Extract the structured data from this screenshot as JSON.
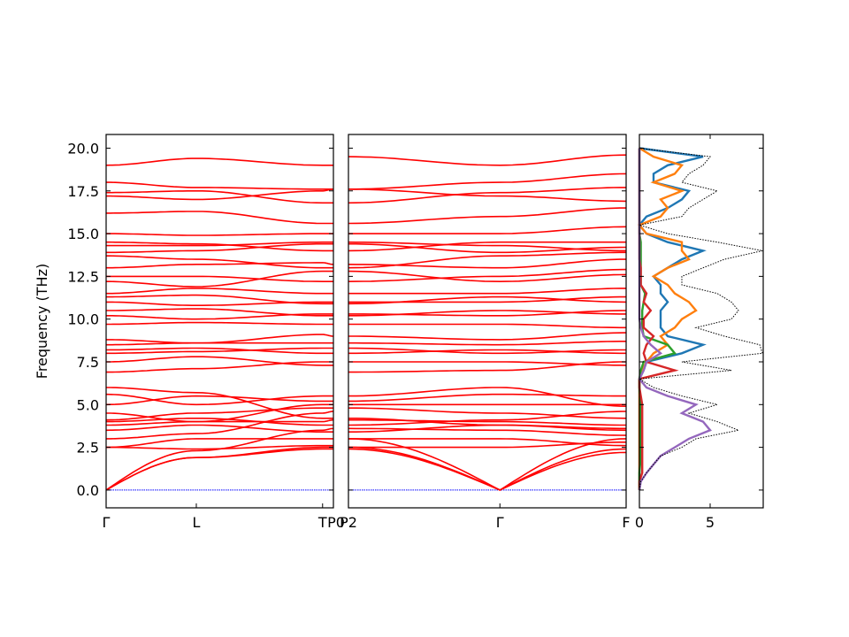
{
  "chart_data": {
    "type": "line",
    "title": "",
    "ylabel": "Frequency (THz)",
    "ylim": [
      -1.04,
      20.8
    ],
    "yticks": [
      0,
      2.5,
      5,
      7.5,
      10,
      12.5,
      15,
      17.5,
      20
    ],
    "ytick_labels": [
      "0.0",
      "2.5",
      "5.0",
      "7.5",
      "10.0",
      "12.5",
      "15.0",
      "17.5",
      "20.0"
    ],
    "band_panels": [
      {
        "name": "path-1",
        "kpoints": [
          0,
          1.0,
          2.4,
          2.52
        ],
        "labels": [
          "Γ",
          "L",
          "T",
          ""
        ],
        "label_after": "P0",
        "band_color": "#ff0000",
        "bands": [
          [
            0,
            1.9,
            2.4,
            2.4
          ],
          [
            0,
            1.9,
            2.5,
            2.5
          ],
          [
            0,
            2.3,
            3.5,
            3.6
          ],
          [
            2.5,
            2.4,
            2.6,
            2.6
          ],
          [
            2.5,
            3.0,
            3.0,
            3.0
          ],
          [
            3.0,
            3.3,
            4.5,
            4.6
          ],
          [
            3.5,
            3.8,
            3.4,
            3.4
          ],
          [
            3.8,
            4.0,
            4.0,
            4.1
          ],
          [
            4.0,
            4.2,
            3.8,
            3.8
          ],
          [
            4.1,
            4.5,
            4.8,
            4.8
          ],
          [
            4.5,
            4.0,
            5.0,
            5.0
          ],
          [
            5.0,
            5.5,
            5.2,
            5.2
          ],
          [
            5.6,
            5.0,
            5.5,
            5.5
          ],
          [
            6.0,
            5.7,
            4.2,
            4.2
          ],
          [
            6.9,
            7.1,
            7.5,
            7.5
          ],
          [
            7.5,
            7.8,
            7.3,
            7.3
          ],
          [
            8.0,
            8.1,
            8.3,
            8.3
          ],
          [
            8.2,
            8.3,
            8.0,
            8.0
          ],
          [
            8.5,
            8.6,
            8.6,
            8.6
          ],
          [
            8.8,
            8.6,
            9.1,
            9.0
          ],
          [
            9.7,
            9.8,
            9.7,
            9.7
          ],
          [
            10.2,
            10.0,
            10.3,
            10.3
          ],
          [
            10.5,
            10.6,
            10.2,
            10.2
          ],
          [
            11.0,
            10.8,
            11.0,
            11.0
          ],
          [
            11.3,
            11.4,
            10.9,
            10.9
          ],
          [
            11.5,
            11.8,
            11.5,
            11.5
          ],
          [
            12.2,
            11.9,
            12.8,
            12.8
          ],
          [
            12.5,
            12.5,
            12.2,
            12.2
          ],
          [
            13.0,
            13.2,
            13.3,
            13.2
          ],
          [
            13.7,
            13.5,
            13.0,
            13.0
          ],
          [
            13.9,
            14.0,
            14.4,
            14.4
          ],
          [
            14.3,
            14.3,
            14.5,
            14.5
          ],
          [
            14.5,
            14.4,
            14.0,
            14.0
          ],
          [
            15.0,
            14.9,
            15.0,
            15.0
          ],
          [
            16.2,
            16.3,
            15.6,
            15.6
          ],
          [
            17.2,
            17.0,
            17.5,
            17.6
          ],
          [
            17.4,
            17.5,
            16.8,
            16.8
          ],
          [
            18.0,
            17.7,
            17.6,
            17.6
          ],
          [
            19.0,
            19.4,
            19.0,
            19.0
          ]
        ]
      },
      {
        "name": "path-2",
        "kpoints": [
          0,
          1.68,
          3.08
        ],
        "labels": [
          "P2",
          "Γ",
          "F"
        ],
        "band_color": "#ff0000",
        "bands": [
          [
            2.4,
            0,
            2.2
          ],
          [
            2.5,
            0,
            2.4
          ],
          [
            3.0,
            0,
            3.0
          ],
          [
            2.5,
            2.5,
            2.8
          ],
          [
            3.0,
            3.0,
            2.6
          ],
          [
            3.6,
            3.5,
            3.2
          ],
          [
            3.4,
            3.8,
            3.5
          ],
          [
            4.1,
            4.0,
            3.8
          ],
          [
            3.8,
            4.1,
            4.6
          ],
          [
            4.8,
            4.5,
            4.2
          ],
          [
            5.0,
            5.0,
            5.0
          ],
          [
            5.2,
            5.6,
            5.5
          ],
          [
            5.5,
            6.0,
            4.9
          ],
          [
            4.2,
            3.8,
            3.6
          ],
          [
            6.9,
            7.0,
            7.5
          ],
          [
            7.5,
            7.5,
            7.3
          ],
          [
            8.3,
            8.0,
            8.2
          ],
          [
            8.0,
            8.2,
            8.0
          ],
          [
            8.6,
            8.5,
            8.7
          ],
          [
            9.0,
            8.8,
            9.2
          ],
          [
            9.7,
            9.7,
            9.5
          ],
          [
            10.3,
            10.2,
            10.5
          ],
          [
            10.2,
            10.5,
            10.3
          ],
          [
            11.0,
            11.0,
            11.3
          ],
          [
            10.9,
            11.3,
            11.0
          ],
          [
            11.5,
            11.5,
            11.8
          ],
          [
            12.8,
            12.2,
            12.6
          ],
          [
            12.2,
            12.5,
            12.9
          ],
          [
            13.2,
            13.0,
            13.5
          ],
          [
            13.0,
            13.7,
            13.9
          ],
          [
            14.4,
            13.9,
            14.2
          ],
          [
            14.5,
            14.3,
            14.0
          ],
          [
            14.0,
            14.5,
            14.5
          ],
          [
            15.0,
            15.0,
            15.4
          ],
          [
            15.6,
            16.0,
            16.5
          ],
          [
            17.6,
            17.2,
            16.9
          ],
          [
            16.8,
            17.4,
            17.7
          ],
          [
            17.6,
            18.0,
            18.5
          ],
          [
            19.5,
            19.0,
            19.6
          ]
        ]
      }
    ],
    "zero_line_color": "#0000ff",
    "dos": {
      "xlim": [
        0,
        8.75
      ],
      "xticks": [
        0,
        5
      ],
      "xtick_labels": [
        "0",
        "5"
      ],
      "freq_start": 0,
      "freq_step": 0.5,
      "total": {
        "color": "#000000",
        "style": "dotted",
        "values": [
          0,
          0.1,
          0.5,
          1.0,
          1.5,
          3.0,
          4.0,
          7.0,
          5.5,
          3.5,
          5.5,
          3.0,
          1.0,
          0,
          6.5,
          3.0,
          8.7,
          8.5,
          6.0,
          4.0,
          6.5,
          7.0,
          6.5,
          5.5,
          3.0,
          3.0,
          4.5,
          6.0,
          8.7,
          5.5,
          2.0,
          0,
          3.0,
          3.5,
          4.5,
          5.5,
          3.0,
          3.5,
          4.5,
          5.0,
          0
        ]
      },
      "projections": [
        {
          "color": "#1f77b4",
          "values": [
            0,
            0,
            0,
            0,
            0,
            0,
            0,
            0,
            0,
            0,
            0,
            0,
            0,
            0,
            0.3,
            0.5,
            3.0,
            4.5,
            2.0,
            1.5,
            1.5,
            1.5,
            2.0,
            1.5,
            1.5,
            1.0,
            2.0,
            3.0,
            4.5,
            2.0,
            0.5,
            0,
            0.5,
            2.0,
            3.0,
            3.5,
            1.0,
            1.0,
            2.0,
            4.5,
            0
          ]
        },
        {
          "color": "#ff7f0e",
          "values": [
            0,
            0,
            0,
            0,
            0,
            0,
            0,
            0,
            0,
            0,
            0,
            0,
            0,
            0,
            0.2,
            0.5,
            1.0,
            2.0,
            1.5,
            2.5,
            3.0,
            4.0,
            3.5,
            2.5,
            2.0,
            1.0,
            2.0,
            3.5,
            3.0,
            3.0,
            0.5,
            0,
            1.5,
            2.0,
            1.5,
            3.0,
            1.0,
            2.5,
            3.0,
            1.0,
            0
          ]
        },
        {
          "color": "#2ca02c",
          "values": [
            0,
            0,
            0,
            0.05,
            0.05,
            0.05,
            0.05,
            0.05,
            0.05,
            0.05,
            0.05,
            0.05,
            0,
            0,
            0.1,
            0.3,
            2.5,
            2.0,
            0.3,
            0.2,
            0.2,
            0.2,
            0.3,
            0.4,
            0.1,
            0.1,
            0.1,
            0.1,
            0.1,
            0.1,
            0,
            0,
            0,
            0,
            0,
            0,
            0,
            0,
            0,
            0,
            0
          ]
        },
        {
          "color": "#d62728",
          "values": [
            0,
            0,
            0.2,
            0.2,
            0.2,
            0.2,
            0.2,
            0.2,
            0.2,
            0.2,
            0.2,
            0.1,
            0,
            0,
            2.5,
            0.5,
            0.3,
            0.5,
            1.0,
            0.3,
            0.3,
            0.8,
            0.3,
            0.5,
            0.1,
            0.1,
            0.1,
            0,
            0,
            0,
            0,
            0,
            0,
            0,
            0,
            0,
            0,
            0,
            0,
            0,
            0
          ]
        },
        {
          "color": "#9467bd",
          "values": [
            0,
            0.1,
            0.5,
            1.0,
            1.5,
            2.5,
            3.5,
            5.0,
            4.5,
            3.0,
            4.0,
            2.0,
            0.5,
            0,
            0.3,
            0.5,
            1.5,
            0.8,
            0.3,
            0.1,
            0,
            0,
            0,
            0,
            0,
            0,
            0,
            0,
            0,
            0,
            0,
            0,
            0,
            0,
            0,
            0,
            0,
            0,
            0,
            0,
            0
          ]
        }
      ]
    }
  }
}
